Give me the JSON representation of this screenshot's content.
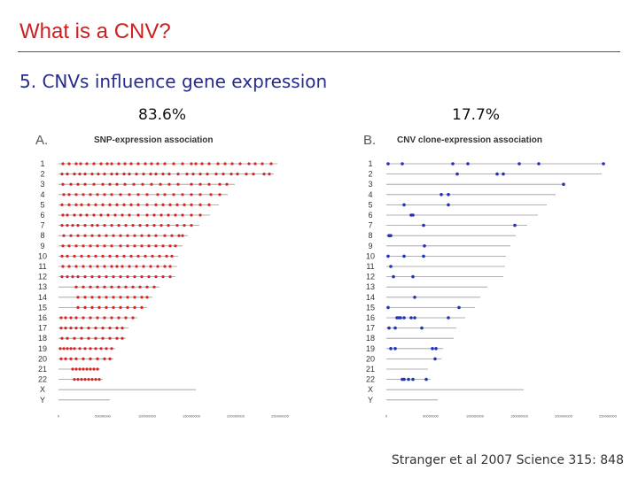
{
  "slide": {
    "title": "What is a CNV?",
    "subtitle": "5. CNVs influence gene expression",
    "citation": "Stranger et al 2007 Science 315: 848"
  },
  "colors": {
    "title": "#cc1f1f",
    "subtitle": "#262c8c",
    "snp_marks": "#dd2222",
    "cnv_marks": "#2233bb",
    "chrom_lines": "#999999"
  },
  "chart_data": [
    {
      "type": "scatter",
      "panel_letter": "A.",
      "title": "SNP-expression association",
      "percent_label": "83.6%",
      "categories": [
        "1",
        "2",
        "3",
        "4",
        "5",
        "6",
        "7",
        "8",
        "9",
        "10",
        "11",
        "12",
        "13",
        "14",
        "15",
        "16",
        "17",
        "18",
        "19",
        "20",
        "21",
        "22",
        "X",
        "Y"
      ],
      "chromosome_lengths": [
        247,
        243,
        199,
        191,
        181,
        171,
        159,
        146,
        140,
        135,
        134,
        132,
        114,
        106,
        100,
        89,
        79,
        76,
        64,
        62,
        47,
        50,
        155,
        58
      ],
      "x_ticks": [
        "0",
        "50000000",
        "100000000",
        "150000000",
        "200000000",
        "250000000"
      ],
      "xlim": [
        0,
        250000000
      ],
      "points_mb": [
        [
          5,
          12,
          20,
          25,
          32,
          40,
          48,
          55,
          60,
          68,
          75,
          82,
          90,
          98,
          105,
          112,
          120,
          130,
          140,
          150,
          155,
          162,
          170,
          180,
          188,
          196,
          205,
          215,
          222,
          230,
          240
        ],
        [
          4,
          10,
          18,
          24,
          30,
          38,
          45,
          52,
          60,
          66,
          74,
          80,
          88,
          96,
          104,
          110,
          118,
          125,
          135,
          145,
          152,
          160,
          168,
          178,
          186,
          195,
          202,
          212,
          220,
          232,
          238
        ],
        [
          5,
          14,
          22,
          30,
          40,
          50,
          58,
          66,
          75,
          85,
          95,
          105,
          115,
          125,
          135,
          150,
          160,
          170,
          182,
          190
        ],
        [
          6,
          12,
          20,
          28,
          36,
          44,
          52,
          60,
          70,
          80,
          90,
          100,
          112,
          120,
          130,
          140,
          150,
          160,
          172,
          182
        ],
        [
          4,
          12,
          20,
          26,
          34,
          42,
          50,
          58,
          66,
          74,
          82,
          90,
          100,
          110,
          118,
          126,
          134,
          142,
          150,
          160,
          170
        ],
        [
          5,
          10,
          18,
          25,
          32,
          40,
          48,
          56,
          64,
          72,
          80,
          90,
          100,
          108,
          116,
          124,
          132,
          140,
          150,
          160
        ],
        [
          4,
          10,
          16,
          22,
          30,
          38,
          44,
          52,
          60,
          68,
          76,
          84,
          92,
          100,
          108,
          116,
          124,
          134,
          142,
          150
        ],
        [
          6,
          14,
          22,
          30,
          38,
          46,
          54,
          62,
          70,
          78,
          86,
          94,
          102,
          110,
          120,
          128,
          136,
          140
        ],
        [
          5,
          12,
          20,
          28,
          36,
          44,
          52,
          60,
          70,
          78,
          86,
          94,
          102,
          110,
          118,
          126,
          132
        ],
        [
          4,
          10,
          18,
          26,
          34,
          42,
          50,
          58,
          66,
          74,
          82,
          90,
          98,
          106,
          114,
          122,
          128
        ],
        [
          5,
          12,
          20,
          28,
          36,
          44,
          52,
          60,
          66,
          72,
          80,
          88,
          96,
          104,
          112,
          120,
          126
        ],
        [
          4,
          10,
          16,
          22,
          30,
          38,
          46,
          54,
          62,
          70,
          78,
          86,
          94,
          102,
          110,
          118,
          126
        ],
        [
          20,
          28,
          36,
          44,
          52,
          60,
          68,
          76,
          84,
          92,
          100,
          108
        ],
        [
          22,
          30,
          38,
          46,
          54,
          62,
          70,
          78,
          86,
          94,
          100
        ],
        [
          22,
          30,
          38,
          46,
          54,
          62,
          70,
          78,
          86,
          94
        ],
        [
          3,
          8,
          14,
          20,
          28,
          36,
          44,
          52,
          60,
          68,
          76,
          84
        ],
        [
          3,
          8,
          14,
          20,
          26,
          34,
          42,
          50,
          58,
          66,
          72
        ],
        [
          4,
          10,
          18,
          26,
          34,
          42,
          50,
          58,
          66,
          72
        ],
        [
          2,
          6,
          10,
          14,
          18,
          24,
          30,
          36,
          42,
          48,
          54,
          60
        ],
        [
          3,
          8,
          14,
          20,
          28,
          36,
          44,
          52,
          58
        ],
        [
          16,
          20,
          24,
          28,
          32,
          36,
          40,
          44
        ],
        [
          18,
          22,
          26,
          30,
          34,
          38,
          42,
          46
        ],
        [],
        []
      ]
    },
    {
      "type": "scatter",
      "panel_letter": "B.",
      "title": "CNV clone-expression association",
      "percent_label": "17.7%",
      "categories": [
        "1",
        "2",
        "3",
        "4",
        "5",
        "6",
        "7",
        "8",
        "9",
        "10",
        "11",
        "12",
        "13",
        "14",
        "15",
        "16",
        "17",
        "18",
        "19",
        "20",
        "21",
        "22",
        "X",
        "Y"
      ],
      "chromosome_lengths": [
        247,
        243,
        199,
        191,
        181,
        171,
        159,
        146,
        140,
        135,
        134,
        132,
        114,
        106,
        100,
        89,
        79,
        76,
        64,
        62,
        47,
        50,
        155,
        58
      ],
      "x_ticks": [
        "0",
        "50000000",
        "100000000",
        "150000000",
        "200000000",
        "250000000"
      ],
      "xlim": [
        0,
        250000000
      ],
      "points_mb": [
        [
          2,
          18,
          75,
          92,
          150,
          172,
          245
        ],
        [
          80,
          125,
          132
        ],
        [
          200
        ],
        [
          62,
          70
        ],
        [
          20,
          70
        ],
        [
          28,
          30
        ],
        [
          42,
          145
        ],
        [
          3,
          5
        ],
        [
          43
        ],
        [
          2,
          20,
          42
        ],
        [
          5
        ],
        [
          8,
          30
        ],
        [],
        [
          32
        ],
        [
          2,
          82
        ],
        [
          12,
          14,
          16,
          20,
          28,
          32,
          70
        ],
        [
          3,
          10,
          40
        ],
        [],
        [
          5,
          10,
          52,
          56
        ],
        [
          55
        ],
        [],
        [
          18,
          20,
          25,
          30,
          45
        ],
        [],
        []
      ]
    }
  ]
}
